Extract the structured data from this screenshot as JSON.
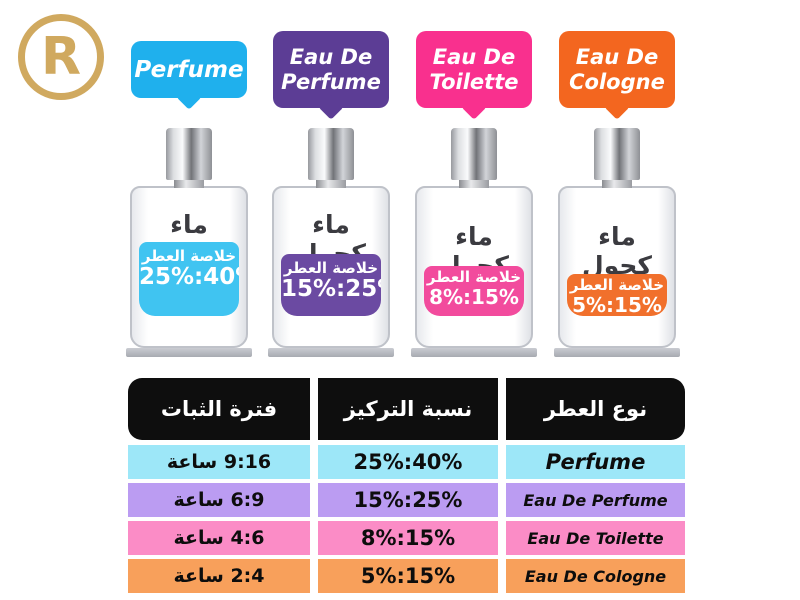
{
  "logo": {
    "letter": "R",
    "color": "#d0a95f"
  },
  "bottles": [
    {
      "name": "Perfume",
      "bubble_line1": "Perfume",
      "bubble_line2": "",
      "bubble_color": "#1fb0ed",
      "liquid_color": "#40c4f1",
      "row_color": "#9de7f8",
      "alcohol_label": "ماء كحول",
      "essence_label": "خلاصة العطر",
      "concentration": "25%:40%",
      "duration": "9:16 ساعة"
    },
    {
      "name": "Eau De Perfume",
      "bubble_line1": "Eau De",
      "bubble_line2": "Perfume",
      "bubble_color": "#5c3d95",
      "liquid_color": "#6b4aa2",
      "row_color": "#bb9cf2",
      "alcohol_label": "ماء كحول",
      "essence_label": "خلاصة العطر",
      "concentration": "15%:25%",
      "duration": "6:9 ساعة"
    },
    {
      "name": "Eau De Toilette",
      "bubble_line1": "Eau De",
      "bubble_line2": "Toilette",
      "bubble_color": "#f9308e",
      "liquid_color": "#f24b9d",
      "row_color": "#fb8cc6",
      "alcohol_label": "ماء كحول",
      "essence_label": "خلاصة العطر",
      "concentration": "8%:15%",
      "duration": "4:6 ساعة"
    },
    {
      "name": "Eau De Cologne",
      "bubble_line1": "Eau De",
      "bubble_line2": "Cologne",
      "bubble_color": "#f3661f",
      "liquid_color": "#f1702c",
      "row_color": "#f8a05b",
      "alcohol_label": "ماء كحول",
      "essence_label": "خلاصة العطر",
      "concentration": "5%:15%",
      "duration": "2:4 ساعة"
    }
  ],
  "table": {
    "headers": {
      "duration": "فترة الثبات",
      "concentration": "نسبة التركيز",
      "type": "نوع العطر"
    }
  }
}
